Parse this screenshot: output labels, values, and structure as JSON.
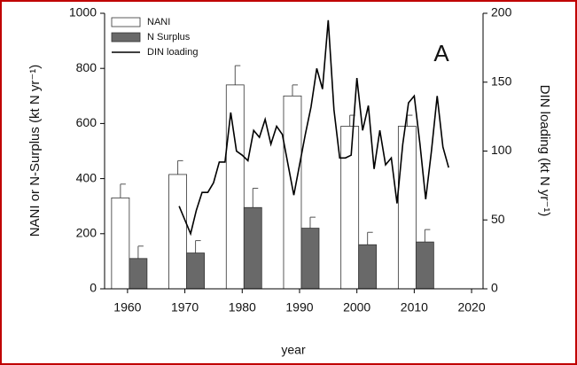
{
  "chart_data": {
    "type": "bar",
    "panel_label": "A",
    "xlabel": "year",
    "ylabel": "NANI or N-Surplus (kt N yr⁻¹)",
    "y2label": "DIN loading (kt N yr⁻¹)",
    "xlim": [
      1956,
      2022
    ],
    "xticks": [
      1960,
      1970,
      1980,
      1990,
      2000,
      2010,
      2020
    ],
    "ylim": [
      0,
      1000
    ],
    "yticks": [
      0,
      200,
      400,
      600,
      800,
      1000
    ],
    "y2lim": [
      0,
      200
    ],
    "y2ticks": [
      0,
      50,
      100,
      150,
      200
    ],
    "legend": "top-left",
    "x": [
      1960,
      1970,
      1980,
      1990,
      2000,
      2010
    ],
    "series": [
      {
        "name": "NANI",
        "type": "bar",
        "color": "#ffffff",
        "values": [
          330,
          415,
          740,
          700,
          590,
          590
        ],
        "errors": [
          50,
          50,
          70,
          40,
          40,
          40
        ]
      },
      {
        "name": "N Surplus",
        "type": "bar",
        "color": "#696969",
        "values": [
          110,
          130,
          295,
          220,
          160,
          170
        ],
        "errors": [
          45,
          45,
          70,
          40,
          45,
          45
        ]
      },
      {
        "name": "DIN loading",
        "type": "line",
        "axis": "y2",
        "color": "#000000",
        "x": [
          1969,
          1970,
          1971,
          1972,
          1973,
          1974,
          1975,
          1976,
          1977,
          1978,
          1979,
          1980,
          1981,
          1982,
          1983,
          1984,
          1985,
          1986,
          1987,
          1988,
          1989,
          1990,
          1991,
          1992,
          1993,
          1994,
          1995,
          1996,
          1997,
          1998,
          1999,
          2000,
          2001,
          2002,
          2003,
          2004,
          2005,
          2006,
          2007,
          2008,
          2009,
          2010,
          2011,
          2012,
          2013,
          2014,
          2015,
          2016
        ],
        "values": [
          60,
          50,
          40,
          57,
          70,
          70,
          77,
          92,
          92,
          128,
          100,
          97,
          93,
          115,
          110,
          123,
          105,
          118,
          112,
          90,
          68,
          90,
          112,
          132,
          160,
          145,
          195,
          130,
          95,
          95,
          97,
          153,
          115,
          133,
          87,
          115,
          90,
          95,
          62,
          105,
          135,
          140,
          105,
          65,
          100,
          140,
          103,
          88
        ]
      }
    ]
  }
}
